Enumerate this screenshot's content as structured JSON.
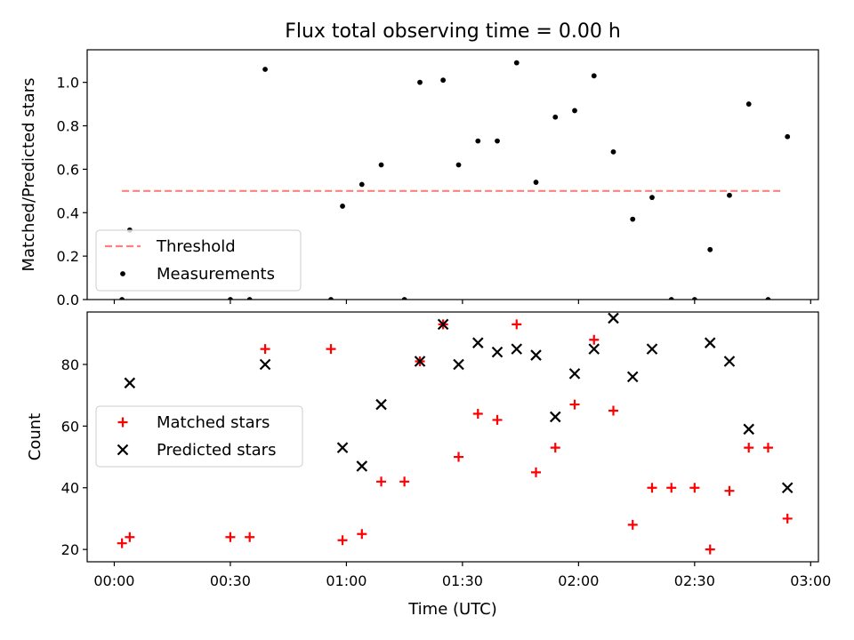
{
  "chart_data": {
    "title": "Flux total observing time = 0.00 h",
    "x_label": "Time (UTC)",
    "x_ticks": [
      "00:00",
      "00:30",
      "01:00",
      "01:30",
      "02:00",
      "02:30",
      "03:00"
    ],
    "x_tick_minutes": [
      0,
      30,
      60,
      90,
      120,
      150,
      180
    ],
    "xlim_minutes": [
      -7,
      182
    ],
    "panels": [
      {
        "type": "scatter",
        "ylabel": "Matched/Predicted stars",
        "ylim": [
          0,
          1.15
        ],
        "y_ticks": [
          "0.0",
          "0.2",
          "0.4",
          "0.6",
          "0.8",
          "1.0"
        ],
        "y_tick_values": [
          0,
          0.2,
          0.4,
          0.6,
          0.8,
          1.0
        ],
        "legend": {
          "position": "lower-left",
          "entries": [
            "Threshold",
            "Measurements"
          ]
        },
        "threshold": {
          "name": "Threshold",
          "value": 0.5,
          "x_range_minutes": [
            2,
            173
          ],
          "color": "#ff7f7f",
          "style": "dashed"
        },
        "series": [
          {
            "name": "Measurements",
            "marker": "dot",
            "color": "#000000",
            "points": [
              {
                "x": 2,
                "y": 0.0
              },
              {
                "x": 4,
                "y": 0.32
              },
              {
                "x": 30,
                "y": 0.0
              },
              {
                "x": 35,
                "y": 0.0
              },
              {
                "x": 39,
                "y": 1.06
              },
              {
                "x": 56,
                "y": 0.0
              },
              {
                "x": 59,
                "y": 0.43
              },
              {
                "x": 64,
                "y": 0.53
              },
              {
                "x": 69,
                "y": 0.62
              },
              {
                "x": 75,
                "y": 0.0
              },
              {
                "x": 79,
                "y": 1.0
              },
              {
                "x": 85,
                "y": 1.01
              },
              {
                "x": 89,
                "y": 0.62
              },
              {
                "x": 94,
                "y": 0.73
              },
              {
                "x": 99,
                "y": 0.73
              },
              {
                "x": 104,
                "y": 1.09
              },
              {
                "x": 109,
                "y": 0.54
              },
              {
                "x": 114,
                "y": 0.84
              },
              {
                "x": 119,
                "y": 0.87
              },
              {
                "x": 124,
                "y": 1.03
              },
              {
                "x": 129,
                "y": 0.68
              },
              {
                "x": 134,
                "y": 0.37
              },
              {
                "x": 139,
                "y": 0.47
              },
              {
                "x": 144,
                "y": 0.0
              },
              {
                "x": 150,
                "y": 0.0
              },
              {
                "x": 154,
                "y": 0.23
              },
              {
                "x": 159,
                "y": 0.48
              },
              {
                "x": 164,
                "y": 0.9
              },
              {
                "x": 169,
                "y": 0.0
              },
              {
                "x": 174,
                "y": 0.75
              }
            ]
          }
        ]
      },
      {
        "type": "scatter",
        "ylabel": "Count",
        "ylim": [
          16,
          97
        ],
        "y_ticks": [
          "20",
          "40",
          "60",
          "80"
        ],
        "y_tick_values": [
          20,
          40,
          60,
          80
        ],
        "legend": {
          "position": "center-left",
          "entries": [
            "Matched stars",
            "Predicted stars"
          ]
        },
        "series": [
          {
            "name": "Matched stars",
            "marker": "plus",
            "color": "#ff0000",
            "points": [
              {
                "x": 2,
                "y": 22
              },
              {
                "x": 4,
                "y": 24
              },
              {
                "x": 30,
                "y": 24
              },
              {
                "x": 35,
                "y": 24
              },
              {
                "x": 39,
                "y": 85
              },
              {
                "x": 56,
                "y": 85
              },
              {
                "x": 59,
                "y": 23
              },
              {
                "x": 64,
                "y": 25
              },
              {
                "x": 69,
                "y": 42
              },
              {
                "x": 75,
                "y": 42
              },
              {
                "x": 79,
                "y": 81
              },
              {
                "x": 85,
                "y": 93
              },
              {
                "x": 89,
                "y": 50
              },
              {
                "x": 94,
                "y": 64
              },
              {
                "x": 99,
                "y": 62
              },
              {
                "x": 104,
                "y": 93
              },
              {
                "x": 109,
                "y": 45
              },
              {
                "x": 114,
                "y": 53
              },
              {
                "x": 119,
                "y": 67
              },
              {
                "x": 124,
                "y": 88
              },
              {
                "x": 129,
                "y": 65
              },
              {
                "x": 134,
                "y": 28
              },
              {
                "x": 139,
                "y": 40
              },
              {
                "x": 144,
                "y": 40
              },
              {
                "x": 150,
                "y": 40
              },
              {
                "x": 154,
                "y": 20
              },
              {
                "x": 159,
                "y": 39
              },
              {
                "x": 164,
                "y": 53
              },
              {
                "x": 169,
                "y": 53
              },
              {
                "x": 174,
                "y": 30
              }
            ]
          },
          {
            "name": "Predicted stars",
            "marker": "x",
            "color": "#000000",
            "points": [
              {
                "x": 4,
                "y": 74
              },
              {
                "x": 39,
                "y": 80
              },
              {
                "x": 59,
                "y": 53
              },
              {
                "x": 64,
                "y": 47
              },
              {
                "x": 69,
                "y": 67
              },
              {
                "x": 79,
                "y": 81
              },
              {
                "x": 85,
                "y": 93
              },
              {
                "x": 89,
                "y": 80
              },
              {
                "x": 94,
                "y": 87
              },
              {
                "x": 99,
                "y": 84
              },
              {
                "x": 104,
                "y": 85
              },
              {
                "x": 109,
                "y": 83
              },
              {
                "x": 114,
                "y": 63
              },
              {
                "x": 119,
                "y": 77
              },
              {
                "x": 124,
                "y": 85
              },
              {
                "x": 129,
                "y": 95
              },
              {
                "x": 134,
                "y": 76
              },
              {
                "x": 139,
                "y": 85
              },
              {
                "x": 154,
                "y": 87
              },
              {
                "x": 159,
                "y": 81
              },
              {
                "x": 164,
                "y": 59
              },
              {
                "x": 174,
                "y": 40
              }
            ]
          }
        ]
      }
    ]
  }
}
